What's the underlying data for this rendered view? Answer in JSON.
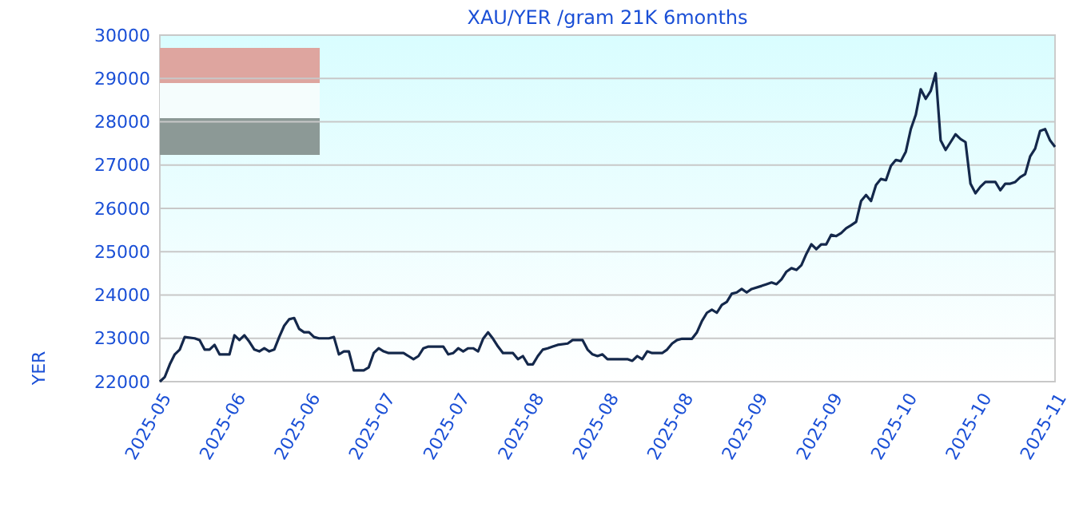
{
  "chart_data": {
    "type": "line",
    "title": "XAU/YER /gram 21K 6months",
    "ylabel": "YER",
    "xlim": [
      "2025-05-18",
      "2025-11-14"
    ],
    "xticks": [
      {
        "value": "2025-05-18",
        "label": "2025-05"
      },
      {
        "value": "2025-06-02",
        "label": "2025-06"
      },
      {
        "value": "2025-06-17",
        "label": "2025-06"
      },
      {
        "value": "2025-07-02",
        "label": "2025-07"
      },
      {
        "value": "2025-07-17",
        "label": "2025-07"
      },
      {
        "value": "2025-08-01",
        "label": "2025-08"
      },
      {
        "value": "2025-08-16",
        "label": "2025-08"
      },
      {
        "value": "2025-08-31",
        "label": "2025-08"
      },
      {
        "value": "2025-09-15",
        "label": "2025-09"
      },
      {
        "value": "2025-09-30",
        "label": "2025-09"
      },
      {
        "value": "2025-10-15",
        "label": "2025-10"
      },
      {
        "value": "2025-10-30",
        "label": "2025-10"
      },
      {
        "value": "2025-11-14",
        "label": "2025-11"
      }
    ],
    "ylim": [
      22000,
      30000
    ],
    "yticks": [
      22000,
      23000,
      24000,
      25000,
      26000,
      27000,
      28000,
      29000,
      30000
    ],
    "grid": "y",
    "series": [
      {
        "color": "#14284b",
        "x": [
          "2025-05-18",
          "2025-05-19",
          "2025-05-20",
          "2025-05-21",
          "2025-05-22",
          "2025-05-23",
          "2025-05-25",
          "2025-05-26",
          "2025-05-27",
          "2025-05-28",
          "2025-05-29",
          "2025-05-30",
          "2025-05-31",
          "2025-06-01",
          "2025-06-02",
          "2025-06-03",
          "2025-06-04",
          "2025-06-05",
          "2025-06-06",
          "2025-06-07",
          "2025-06-08",
          "2025-06-09",
          "2025-06-10",
          "2025-06-11",
          "2025-06-12",
          "2025-06-13",
          "2025-06-14",
          "2025-06-15",
          "2025-06-16",
          "2025-06-17",
          "2025-06-18",
          "2025-06-19",
          "2025-06-21",
          "2025-06-22",
          "2025-06-23",
          "2025-06-24",
          "2025-06-25",
          "2025-06-26",
          "2025-06-27",
          "2025-06-28",
          "2025-06-29",
          "2025-06-30",
          "2025-07-01",
          "2025-07-02",
          "2025-07-03",
          "2025-07-04",
          "2025-07-05",
          "2025-07-06",
          "2025-07-07",
          "2025-07-08",
          "2025-07-09",
          "2025-07-10",
          "2025-07-11",
          "2025-07-12",
          "2025-07-13",
          "2025-07-14",
          "2025-07-15",
          "2025-07-16",
          "2025-07-17",
          "2025-07-18",
          "2025-07-19",
          "2025-07-20",
          "2025-07-21",
          "2025-07-22",
          "2025-07-23",
          "2025-07-24",
          "2025-07-25",
          "2025-07-26",
          "2025-07-27",
          "2025-07-28",
          "2025-07-29",
          "2025-07-30",
          "2025-07-31",
          "2025-08-01",
          "2025-08-02",
          "2025-08-03",
          "2025-08-04",
          "2025-08-05",
          "2025-08-06",
          "2025-08-08",
          "2025-08-09",
          "2025-08-11",
          "2025-08-12",
          "2025-08-13",
          "2025-08-14",
          "2025-08-15",
          "2025-08-16",
          "2025-08-17",
          "2025-08-19",
          "2025-08-20",
          "2025-08-21",
          "2025-08-22",
          "2025-08-23",
          "2025-08-24",
          "2025-08-25",
          "2025-08-26",
          "2025-08-27",
          "2025-08-28",
          "2025-08-29",
          "2025-08-30",
          "2025-08-31",
          "2025-09-01",
          "2025-09-02",
          "2025-09-03",
          "2025-09-04",
          "2025-09-05",
          "2025-09-06",
          "2025-09-07",
          "2025-09-08",
          "2025-09-09",
          "2025-09-10",
          "2025-09-11",
          "2025-09-12",
          "2025-09-13",
          "2025-09-14",
          "2025-09-16",
          "2025-09-17",
          "2025-09-18",
          "2025-09-19",
          "2025-09-20",
          "2025-09-21",
          "2025-09-22",
          "2025-09-23",
          "2025-09-24",
          "2025-09-25",
          "2025-09-26",
          "2025-09-27",
          "2025-09-28",
          "2025-09-29",
          "2025-09-30",
          "2025-10-01",
          "2025-10-02",
          "2025-10-03",
          "2025-10-04",
          "2025-10-05",
          "2025-10-06",
          "2025-10-07",
          "2025-10-08",
          "2025-10-09",
          "2025-10-10",
          "2025-10-11",
          "2025-10-12",
          "2025-10-13",
          "2025-10-14",
          "2025-10-15",
          "2025-10-16",
          "2025-10-17",
          "2025-10-18",
          "2025-10-19",
          "2025-10-20",
          "2025-10-21",
          "2025-10-22",
          "2025-10-23",
          "2025-10-24",
          "2025-10-25",
          "2025-10-26",
          "2025-10-27",
          "2025-10-28",
          "2025-10-29",
          "2025-10-30",
          "2025-10-31",
          "2025-11-01",
          "2025-11-02",
          "2025-11-03",
          "2025-11-04",
          "2025-11-05",
          "2025-11-06",
          "2025-11-07",
          "2025-11-08",
          "2025-11-09",
          "2025-11-10",
          "2025-11-11",
          "2025-11-12",
          "2025-11-13",
          "2025-11-14"
        ],
        "values": [
          22000,
          22110,
          22400,
          22630,
          22740,
          23030,
          23000,
          22960,
          22740,
          22740,
          22850,
          22630,
          22630,
          22630,
          23070,
          22960,
          23070,
          22920,
          22740,
          22700,
          22770,
          22700,
          22740,
          23030,
          23290,
          23440,
          23470,
          23220,
          23140,
          23140,
          23030,
          23000,
          23000,
          23030,
          22630,
          22700,
          22700,
          22260,
          22260,
          22260,
          22330,
          22660,
          22770,
          22700,
          22660,
          22660,
          22660,
          22660,
          22590,
          22520,
          22590,
          22770,
          22810,
          22810,
          22810,
          22810,
          22630,
          22660,
          22770,
          22700,
          22770,
          22770,
          22700,
          22990,
          23140,
          22990,
          22810,
          22660,
          22660,
          22660,
          22520,
          22590,
          22400,
          22400,
          22590,
          22740,
          22770,
          22810,
          22850,
          22880,
          22960,
          22960,
          22740,
          22630,
          22590,
          22630,
          22520,
          22520,
          22520,
          22520,
          22480,
          22590,
          22520,
          22700,
          22660,
          22660,
          22660,
          22740,
          22880,
          22960,
          22990,
          22990,
          22990,
          23140,
          23400,
          23590,
          23660,
          23590,
          23770,
          23840,
          24030,
          24060,
          24140,
          24060,
          24140,
          24210,
          24250,
          24290,
          24250,
          24360,
          24540,
          24620,
          24580,
          24690,
          24950,
          25170,
          25060,
          25170,
          25170,
          25390,
          25360,
          25430,
          25540,
          25610,
          25690,
          26170,
          26310,
          26170,
          26540,
          26680,
          26650,
          26980,
          27120,
          27090,
          27310,
          27830,
          28160,
          28750,
          28530,
          28710,
          29120,
          27570,
          27350,
          27530,
          27710,
          27600,
          27530,
          26570,
          26350,
          26500,
          26610,
          26610,
          26610,
          26420,
          26570,
          26570,
          26610,
          26720,
          26790,
          27200,
          27380,
          27790,
          27830,
          27570,
          27420
        ]
      }
    ]
  }
}
